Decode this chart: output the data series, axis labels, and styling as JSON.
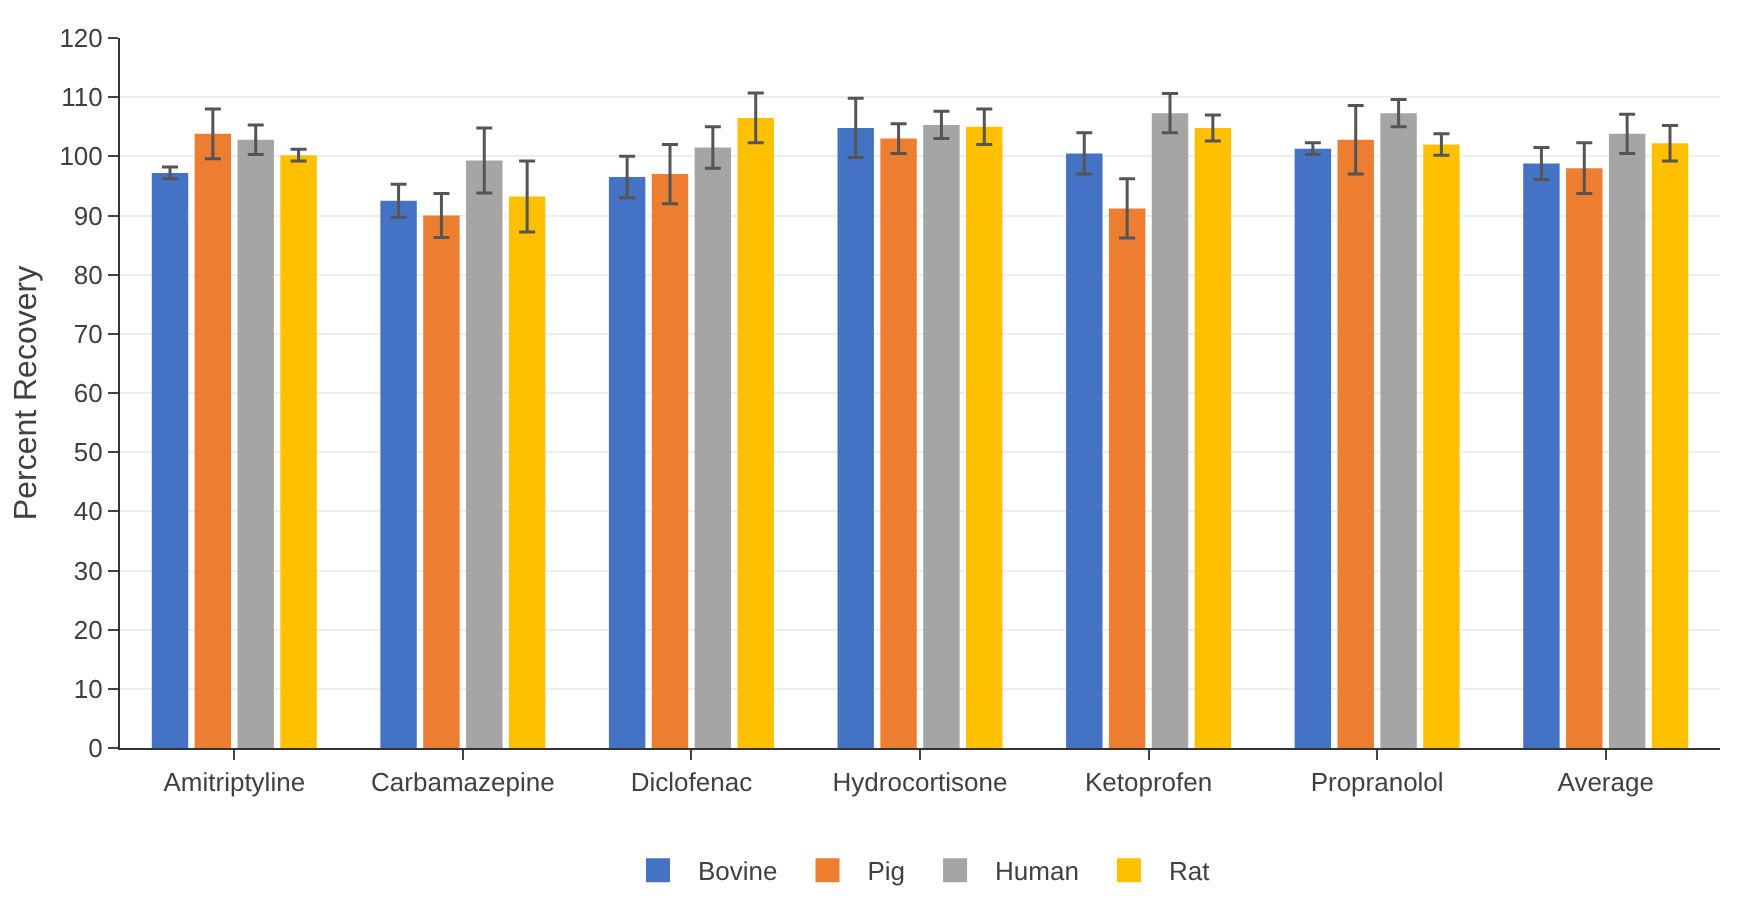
{
  "chart_data": {
    "type": "bar",
    "ylabel": "Percent Recovery",
    "categories": [
      "Amitriptyline",
      "Carbamazepine",
      "Diclofenac",
      "Hydrocortisone",
      "Ketoprofen",
      "Propranolol",
      "Average"
    ],
    "series": [
      {
        "name": "Bovine",
        "color": "#4472c4",
        "values": [
          97.2,
          92.5,
          96.5,
          104.8,
          100.5,
          101.3,
          98.8
        ],
        "errors": [
          1,
          2.8,
          3.5,
          5,
          3.5,
          1,
          2.7
        ]
      },
      {
        "name": "Pig",
        "color": "#ed7d31",
        "values": [
          103.8,
          90,
          97,
          103,
          91.2,
          102.8,
          98
        ],
        "errors": [
          4.2,
          3.7,
          5,
          2.5,
          5,
          5.8,
          4.3
        ]
      },
      {
        "name": "Human",
        "color": "#a5a5a5",
        "values": [
          102.8,
          99.3,
          101.5,
          105.3,
          107.3,
          107.3,
          103.8
        ],
        "errors": [
          2.5,
          5.5,
          3.5,
          2.3,
          3.3,
          2.3,
          3.3
        ]
      },
      {
        "name": "Rat",
        "color": "#ffc000",
        "values": [
          100.2,
          93.2,
          106.5,
          105,
          104.8,
          102,
          102.2
        ],
        "errors": [
          1,
          6,
          4.2,
          3,
          2.2,
          1.8,
          3
        ]
      }
    ],
    "ylim": [
      0,
      120
    ],
    "yticks": [
      0,
      10,
      20,
      30,
      40,
      50,
      60,
      70,
      80,
      90,
      100,
      110,
      120
    ],
    "grid": "y",
    "legend": "bottom"
  }
}
